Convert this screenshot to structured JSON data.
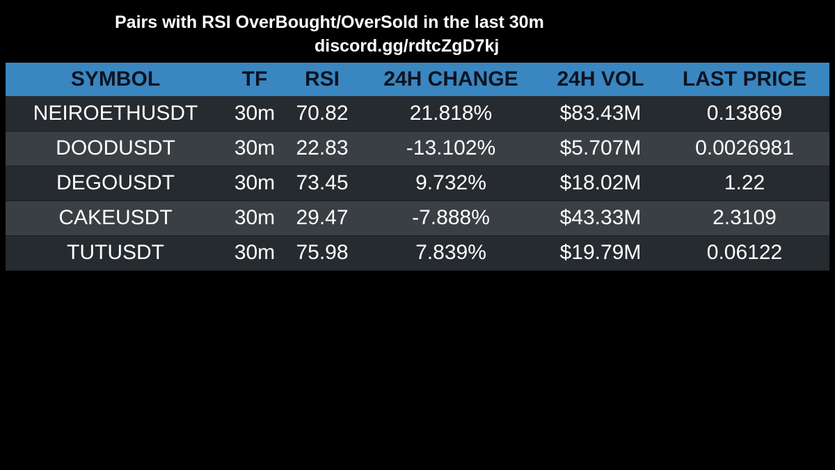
{
  "header": {
    "title": "Pairs with RSI OverBought/OverSold in the last 30m",
    "subtitle": "discord.gg/rdtcZgD7kj"
  },
  "table": {
    "columns": [
      "SYMBOL",
      "TF",
      "RSI",
      "24H CHANGE",
      "24H VOL",
      "LAST PRICE"
    ],
    "rows": [
      {
        "symbol": "NEIROETHUSDT",
        "tf": "30m",
        "rsi": "70.82",
        "change": "21.818%",
        "vol": "$83.43M",
        "price": "0.13869"
      },
      {
        "symbol": "DOODUSDT",
        "tf": "30m",
        "rsi": "22.83",
        "change": "-13.102%",
        "vol": "$5.707M",
        "price": "0.0026981"
      },
      {
        "symbol": "DEGOUSDT",
        "tf": "30m",
        "rsi": "73.45",
        "change": "9.732%",
        "vol": "$18.02M",
        "price": "1.22"
      },
      {
        "symbol": "CAKEUSDT",
        "tf": "30m",
        "rsi": "29.47",
        "change": "-7.888%",
        "vol": "$43.33M",
        "price": "2.3109"
      },
      {
        "symbol": "TUTUSDT",
        "tf": "30m",
        "rsi": "75.98",
        "change": "7.839%",
        "vol": "$19.79M",
        "price": "0.06122"
      }
    ]
  },
  "colors": {
    "background": "#000000",
    "header_bg": "#3a86c0",
    "header_text": "#0d1420",
    "row_odd": "#262b30",
    "row_even": "#3a3f44",
    "text": "#ffffff"
  }
}
